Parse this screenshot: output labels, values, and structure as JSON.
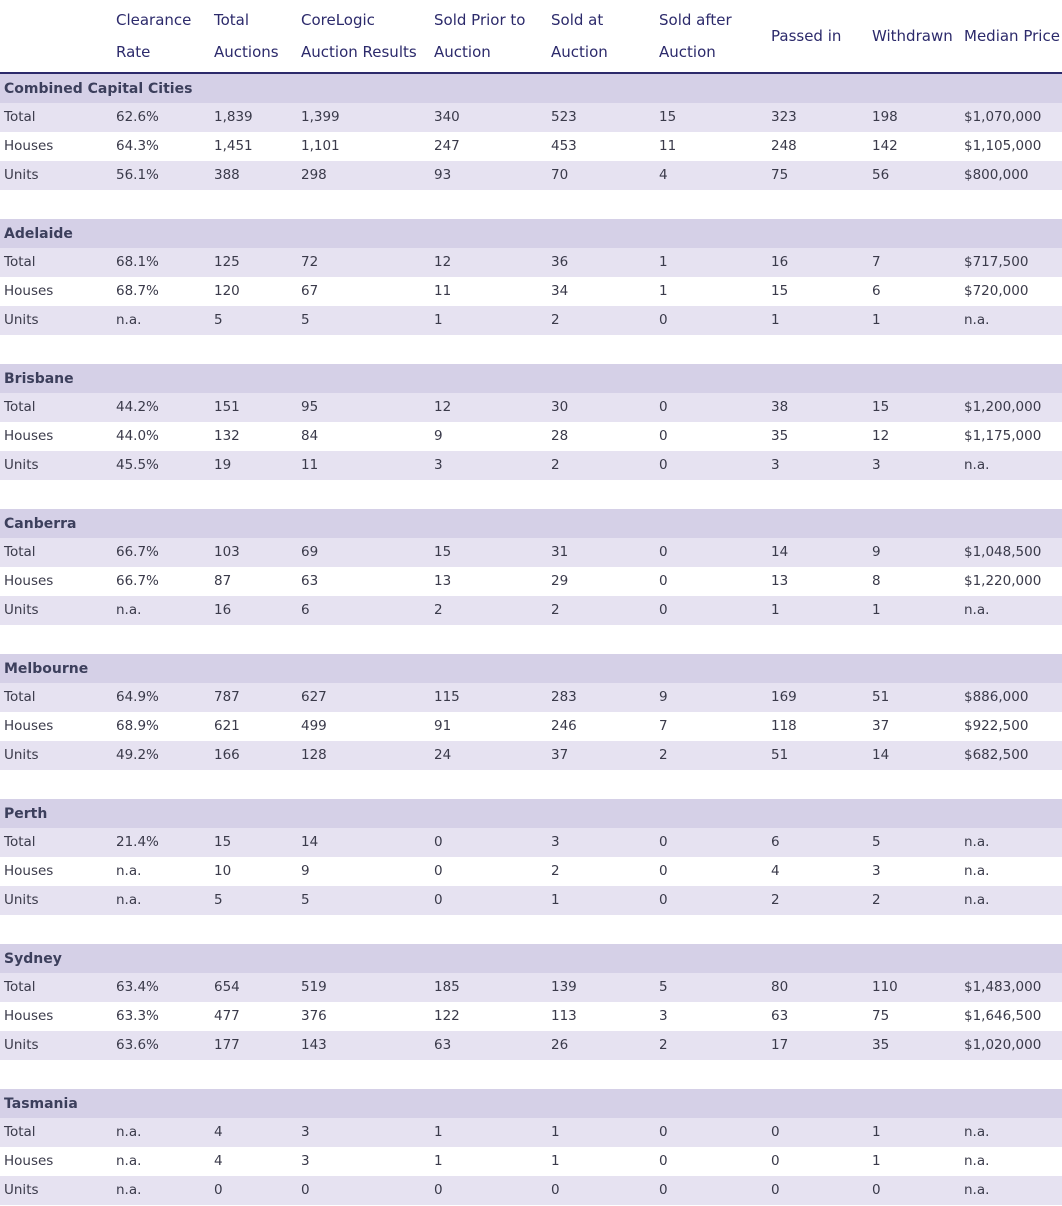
{
  "header": {
    "clearance_rate": "Clearance Rate",
    "total_auctions": "Total Auctions",
    "corelogic_results": "CoreLogic Auction Results",
    "sold_prior": "Sold Prior to Auction",
    "sold_at": "Sold at Auction",
    "sold_after": "Sold after Auction",
    "passed_in": "Passed in",
    "withdrawn": "Withdrawn",
    "median_price": "Median Price"
  },
  "regions": [
    {
      "name": "Combined Capital Cities",
      "rows": [
        {
          "label": "Total",
          "values": [
            "62.6%",
            "1,839",
            "1,399",
            "340",
            "523",
            "15",
            "323",
            "198",
            "$1,070,000"
          ]
        },
        {
          "label": "Houses",
          "values": [
            "64.3%",
            "1,451",
            "1,101",
            "247",
            "453",
            "11",
            "248",
            "142",
            "$1,105,000"
          ]
        },
        {
          "label": "Units",
          "values": [
            "56.1%",
            "388",
            "298",
            "93",
            "70",
            "4",
            "75",
            "56",
            "$800,000"
          ]
        }
      ]
    },
    {
      "name": "Adelaide",
      "rows": [
        {
          "label": "Total",
          "values": [
            "68.1%",
            "125",
            "72",
            "12",
            "36",
            "1",
            "16",
            "7",
            "$717,500"
          ]
        },
        {
          "label": "Houses",
          "values": [
            "68.7%",
            "120",
            "67",
            "11",
            "34",
            "1",
            "15",
            "6",
            "$720,000"
          ]
        },
        {
          "label": "Units",
          "values": [
            "n.a.",
            "5",
            "5",
            "1",
            "2",
            "0",
            "1",
            "1",
            "n.a."
          ]
        }
      ]
    },
    {
      "name": "Brisbane",
      "rows": [
        {
          "label": "Total",
          "values": [
            "44.2%",
            "151",
            "95",
            "12",
            "30",
            "0",
            "38",
            "15",
            "$1,200,000"
          ]
        },
        {
          "label": "Houses",
          "values": [
            "44.0%",
            "132",
            "84",
            "9",
            "28",
            "0",
            "35",
            "12",
            "$1,175,000"
          ]
        },
        {
          "label": "Units",
          "values": [
            "45.5%",
            "19",
            "11",
            "3",
            "2",
            "0",
            "3",
            "3",
            "n.a."
          ]
        }
      ]
    },
    {
      "name": "Canberra",
      "rows": [
        {
          "label": "Total",
          "values": [
            "66.7%",
            "103",
            "69",
            "15",
            "31",
            "0",
            "14",
            "9",
            "$1,048,500"
          ]
        },
        {
          "label": "Houses",
          "values": [
            "66.7%",
            "87",
            "63",
            "13",
            "29",
            "0",
            "13",
            "8",
            "$1,220,000"
          ]
        },
        {
          "label": "Units",
          "values": [
            "n.a.",
            "16",
            "6",
            "2",
            "2",
            "0",
            "1",
            "1",
            "n.a."
          ]
        }
      ]
    },
    {
      "name": "Melbourne",
      "rows": [
        {
          "label": "Total",
          "values": [
            "64.9%",
            "787",
            "627",
            "115",
            "283",
            "9",
            "169",
            "51",
            "$886,000"
          ]
        },
        {
          "label": "Houses",
          "values": [
            "68.9%",
            "621",
            "499",
            "91",
            "246",
            "7",
            "118",
            "37",
            "$922,500"
          ]
        },
        {
          "label": "Units",
          "values": [
            "49.2%",
            "166",
            "128",
            "24",
            "37",
            "2",
            "51",
            "14",
            "$682,500"
          ]
        }
      ]
    },
    {
      "name": "Perth",
      "rows": [
        {
          "label": "Total",
          "values": [
            "21.4%",
            "15",
            "14",
            "0",
            "3",
            "0",
            "6",
            "5",
            "n.a."
          ]
        },
        {
          "label": "Houses",
          "values": [
            "n.a.",
            "10",
            "9",
            "0",
            "2",
            "0",
            "4",
            "3",
            "n.a."
          ]
        },
        {
          "label": "Units",
          "values": [
            "n.a.",
            "5",
            "5",
            "0",
            "1",
            "0",
            "2",
            "2",
            "n.a."
          ]
        }
      ]
    },
    {
      "name": "Sydney",
      "rows": [
        {
          "label": "Total",
          "values": [
            "63.4%",
            "654",
            "519",
            "185",
            "139",
            "5",
            "80",
            "110",
            "$1,483,000"
          ]
        },
        {
          "label": "Houses",
          "values": [
            "63.3%",
            "477",
            "376",
            "122",
            "113",
            "3",
            "63",
            "75",
            "$1,646,500"
          ]
        },
        {
          "label": "Units",
          "values": [
            "63.6%",
            "177",
            "143",
            "63",
            "26",
            "2",
            "17",
            "35",
            "$1,020,000"
          ]
        }
      ]
    },
    {
      "name": "Tasmania",
      "rows": [
        {
          "label": "Total",
          "values": [
            "n.a.",
            "4",
            "3",
            "1",
            "1",
            "0",
            "0",
            "1",
            "n.a."
          ]
        },
        {
          "label": "Houses",
          "values": [
            "n.a.",
            "4",
            "3",
            "1",
            "1",
            "0",
            "0",
            "1",
            "n.a."
          ]
        },
        {
          "label": "Units",
          "values": [
            "n.a.",
            "0",
            "0",
            "0",
            "0",
            "0",
            "0",
            "0",
            "n.a."
          ]
        }
      ]
    }
  ]
}
